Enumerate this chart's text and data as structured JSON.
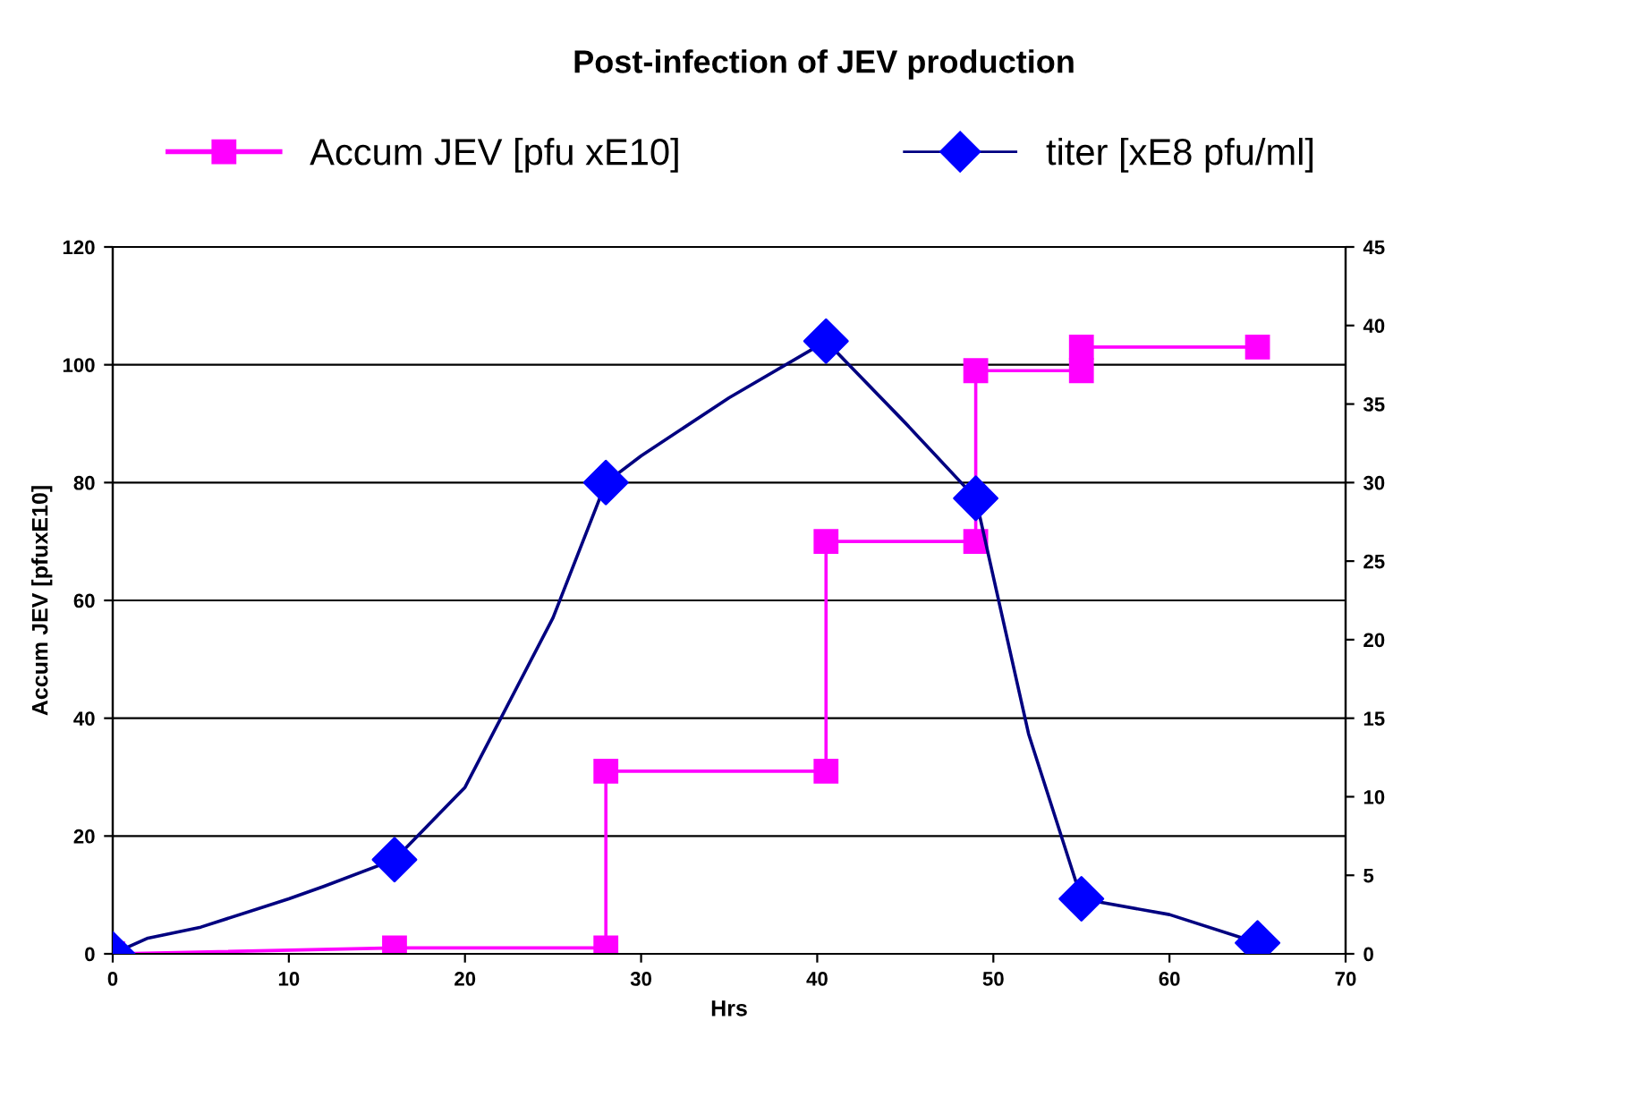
{
  "chart_data": {
    "type": "line",
    "title": "Post-infection of JEV production",
    "xlabel": "Hrs",
    "ylabel": "Accum JEV [pfuxE10]",
    "xlim": [
      0,
      70
    ],
    "xticks": [
      0,
      10,
      20,
      30,
      40,
      50,
      60,
      70
    ],
    "ylim": [
      0,
      120
    ],
    "yticks": [
      0,
      20,
      40,
      60,
      80,
      100,
      120
    ],
    "y2lim": [
      0,
      45
    ],
    "y2ticks": [
      0,
      5,
      10,
      15,
      20,
      25,
      30,
      35,
      40,
      45
    ],
    "grid": "y",
    "legend": "top",
    "series": [
      {
        "name": "Accum JEV [pfu xE10]",
        "color": "#ff00ff",
        "marker": "square",
        "x": [
          0,
          16,
          28,
          28,
          40.5,
          40.5,
          49,
          49,
          55,
          55,
          65
        ],
        "values": [
          0,
          1,
          1,
          31,
          31,
          70,
          70,
          99,
          99,
          103,
          103
        ]
      },
      {
        "axis": "y2",
        "color": "#000080",
        "marker": "none",
        "x": [
          0,
          2,
          5,
          10,
          12,
          16,
          20,
          25,
          28,
          30,
          35,
          40.5,
          45,
          49,
          52,
          55,
          60,
          65
        ],
        "values": [
          0,
          1,
          1.7,
          3.5,
          4.3,
          6,
          10.6,
          21.4,
          30,
          31.7,
          35.4,
          39,
          33.8,
          29,
          14,
          3.5,
          2.5,
          0.7
        ]
      },
      {
        "name": "titer [xE8 pfu/ml]",
        "type": "scatter",
        "axis": "y2",
        "color": "#0000ff",
        "marker": "diamond",
        "x": [
          0,
          16,
          28,
          40.5,
          49,
          55,
          65
        ],
        "values": [
          0,
          6,
          30,
          39,
          29,
          3.5,
          0.7
        ]
      }
    ]
  }
}
